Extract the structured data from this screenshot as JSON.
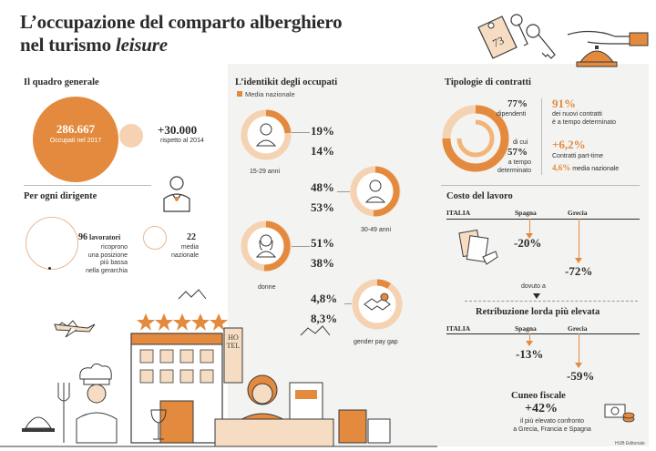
{
  "header": {
    "title_line1": "L’occupazione del comparto alberghiero",
    "title_line2": "nel turismo ",
    "title_italic": "leisure",
    "key_number": "73"
  },
  "quadro": {
    "heading": "Il quadro generale",
    "occupati_value": "286.667",
    "occupati_label": "Occupati nel 2017",
    "delta_value": "+30.000",
    "delta_label": "rispetto al 2014"
  },
  "dirigente": {
    "heading": "Per ogni dirigente",
    "workers_value": "96",
    "workers_unit": " lavoratori",
    "workers_desc": [
      "ricoprono",
      "una posizione",
      "più bassa",
      "nella gerarchia"
    ],
    "avg_value": "22",
    "avg_desc": [
      "media",
      "nazionale"
    ]
  },
  "identikit": {
    "heading": "L’identikit degli occupati",
    "legend": "Media nazionale",
    "groups": [
      {
        "label": "15-29 anni",
        "value": "19%",
        "national": "14%"
      },
      {
        "label": "30-49 anni",
        "value": "48%",
        "national": "53%"
      },
      {
        "label": "donne",
        "value": "51%",
        "national": "38%"
      },
      {
        "label": "gender pay gap",
        "value": "4,8%",
        "national": "8,3%"
      }
    ]
  },
  "contratti": {
    "heading": "Tipologie di contratti",
    "dipendenti_value": "77%",
    "dipendenti_label": "dipendenti",
    "di_cui": "di cui",
    "tempo_det_value": "57%",
    "tempo_det_label": [
      "a tempo",
      "determinato"
    ],
    "nuovi_value": "91%",
    "nuovi_label": [
      "dei nuovi contratti",
      "è a tempo determinato"
    ],
    "pt_value": "+6,2%",
    "pt_label": "Contratti part-time",
    "pt_nat_value": "4,6%",
    "pt_nat_label": " media nazionale"
  },
  "costo": {
    "heading": "Costo del lavoro",
    "col_italia": "ITALIA",
    "col_spagna": "Spagna",
    "col_grecia": "Grecia",
    "spagna_value": "-20%",
    "grecia_value": "-72%",
    "dovuto": "dovuto a"
  },
  "retribuzione": {
    "heading": "Retribuzione lorda più elevata",
    "col_italia": "ITALIA",
    "col_spagna": "Spagna",
    "col_grecia": "Grecia",
    "spagna_value": "-13%",
    "grecia_value": "-59%"
  },
  "cuneo": {
    "heading": "Cuneo fiscale",
    "value": "+42%",
    "desc": [
      "il più elevato confronto",
      "a Grecia, Francia e Spagna"
    ]
  },
  "illustration": {
    "hotel_sign": "HOTEL",
    "credit": "HUB Editoriale"
  },
  "colors": {
    "accent": "#e38a3e",
    "accent_light": "#f3b47a",
    "ring_light": "#f5d2b2",
    "panel": "#f3f3f1",
    "text": "#2b2b2b"
  }
}
